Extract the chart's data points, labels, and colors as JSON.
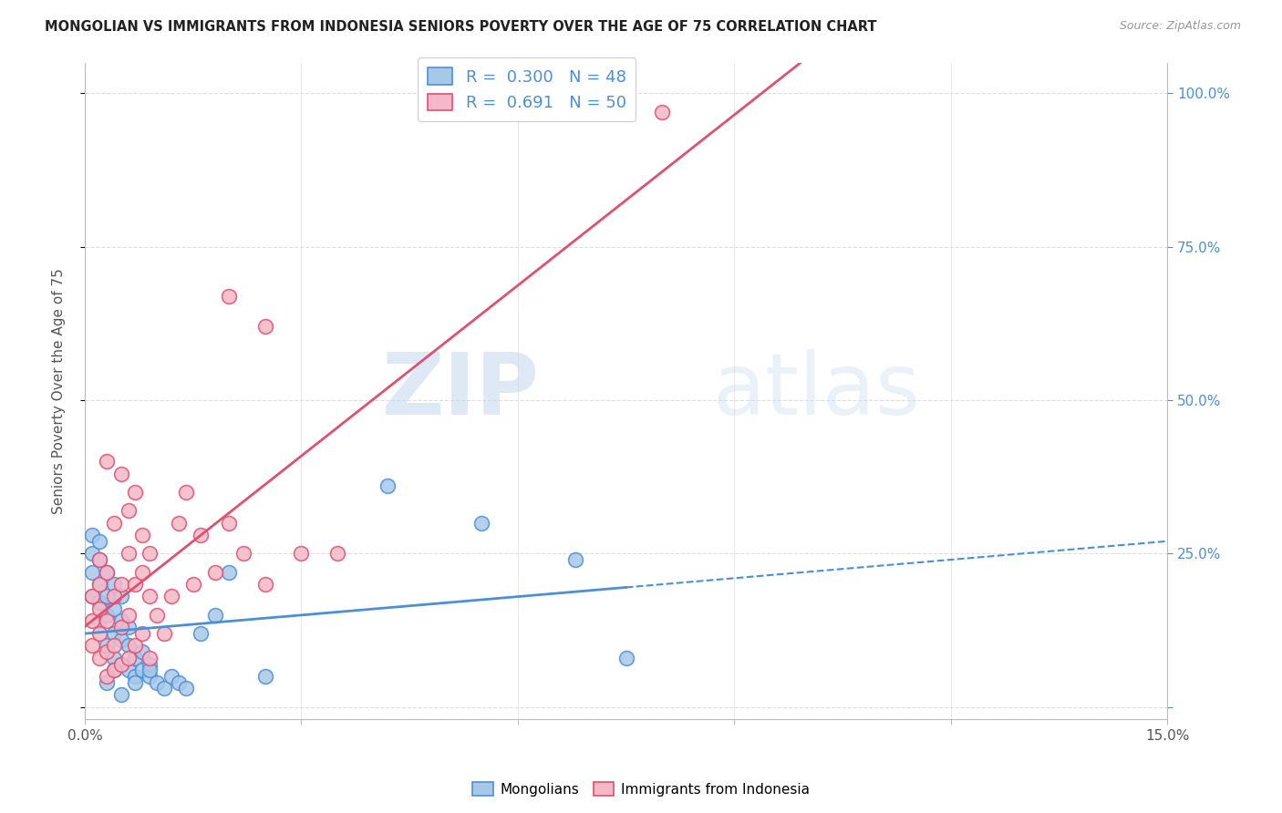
{
  "title": "MONGOLIAN VS IMMIGRANTS FROM INDONESIA SENIORS POVERTY OVER THE AGE OF 75 CORRELATION CHART",
  "source": "Source: ZipAtlas.com",
  "ylabel": "Seniors Poverty Over the Age of 75",
  "xlim": [
    0.0,
    0.15
  ],
  "ylim": [
    -0.02,
    1.05
  ],
  "ytick_positions": [
    0.0,
    0.25,
    0.5,
    0.75,
    1.0
  ],
  "yticklabels_right": [
    "",
    "25.0%",
    "50.0%",
    "75.0%",
    "100.0%"
  ],
  "mongolian_color": "#a8c8e8",
  "indonesia_color": "#f4b8c8",
  "mongolian_line_color": "#4a90d9",
  "indonesia_line_color": "#e05070",
  "mongolian_R": 0.3,
  "mongolian_N": 48,
  "indonesia_R": 0.691,
  "indonesia_N": 50,
  "watermark_zip": "ZIP",
  "watermark_atlas": "atlas",
  "background_color": "#ffffff",
  "grid_color": "#dddddd",
  "mongolian_scatter_x": [
    0.001,
    0.001,
    0.001,
    0.001,
    0.002,
    0.002,
    0.002,
    0.002,
    0.002,
    0.003,
    0.003,
    0.003,
    0.003,
    0.004,
    0.004,
    0.004,
    0.004,
    0.005,
    0.005,
    0.005,
    0.005,
    0.006,
    0.006,
    0.006,
    0.007,
    0.007,
    0.008,
    0.008,
    0.009,
    0.009,
    0.01,
    0.011,
    0.012,
    0.013,
    0.014,
    0.016,
    0.018,
    0.02,
    0.025,
    0.042,
    0.055,
    0.068,
    0.075,
    0.003,
    0.004,
    0.005,
    0.007,
    0.009
  ],
  "mongolian_scatter_y": [
    0.18,
    0.22,
    0.25,
    0.28,
    0.14,
    0.17,
    0.2,
    0.24,
    0.27,
    0.1,
    0.15,
    0.18,
    0.22,
    0.08,
    0.12,
    0.16,
    0.2,
    0.07,
    0.11,
    0.14,
    0.18,
    0.06,
    0.1,
    0.13,
    0.05,
    0.08,
    0.06,
    0.09,
    0.05,
    0.07,
    0.04,
    0.03,
    0.05,
    0.04,
    0.03,
    0.12,
    0.15,
    0.22,
    0.05,
    0.36,
    0.3,
    0.24,
    0.08,
    0.04,
    0.06,
    0.02,
    0.04,
    0.06
  ],
  "indonesia_scatter_x": [
    0.001,
    0.001,
    0.001,
    0.002,
    0.002,
    0.002,
    0.002,
    0.002,
    0.003,
    0.003,
    0.003,
    0.003,
    0.004,
    0.004,
    0.004,
    0.005,
    0.005,
    0.005,
    0.006,
    0.006,
    0.006,
    0.007,
    0.007,
    0.008,
    0.008,
    0.009,
    0.009,
    0.01,
    0.011,
    0.012,
    0.013,
    0.014,
    0.015,
    0.016,
    0.018,
    0.02,
    0.022,
    0.025,
    0.03,
    0.035,
    0.02,
    0.025,
    0.003,
    0.004,
    0.005,
    0.006,
    0.007,
    0.008,
    0.009,
    0.08
  ],
  "indonesia_scatter_y": [
    0.1,
    0.14,
    0.18,
    0.08,
    0.12,
    0.16,
    0.2,
    0.24,
    0.05,
    0.09,
    0.14,
    0.22,
    0.06,
    0.1,
    0.18,
    0.07,
    0.13,
    0.2,
    0.08,
    0.15,
    0.25,
    0.1,
    0.2,
    0.12,
    0.22,
    0.08,
    0.18,
    0.15,
    0.12,
    0.18,
    0.3,
    0.35,
    0.2,
    0.28,
    0.22,
    0.3,
    0.25,
    0.2,
    0.25,
    0.25,
    0.67,
    0.62,
    0.4,
    0.3,
    0.38,
    0.32,
    0.35,
    0.28,
    0.25,
    0.97
  ]
}
